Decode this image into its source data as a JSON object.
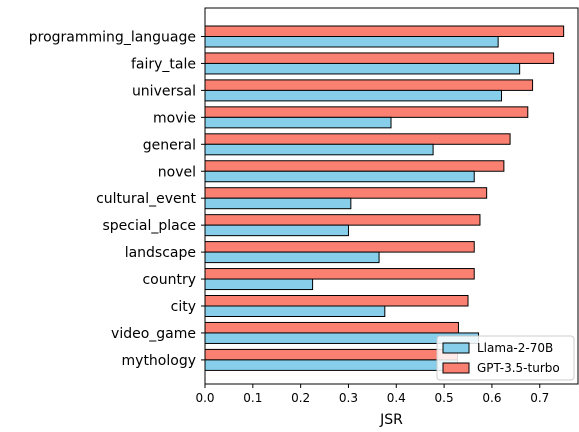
{
  "chart_data": {
    "type": "bar",
    "orientation": "horizontal",
    "categories": [
      "programming_language",
      "fairy_tale",
      "universal",
      "movie",
      "general",
      "novel",
      "cultural_event",
      "special_place",
      "landscape",
      "country",
      "city",
      "video_game",
      "mythology"
    ],
    "series": [
      {
        "name": "Llama-2-70B",
        "color": "#87CEEB",
        "values": [
          0.613,
          0.658,
          0.62,
          0.389,
          0.477,
          0.563,
          0.305,
          0.3,
          0.364,
          0.225,
          0.376,
          0.572,
          0.528
        ]
      },
      {
        "name": "GPT-3.5-turbo",
        "color": "#FA8072",
        "values": [
          0.75,
          0.729,
          0.685,
          0.675,
          0.638,
          0.625,
          0.589,
          0.575,
          0.563,
          0.563,
          0.55,
          0.53,
          0.528
        ]
      }
    ],
    "xlabel": "JSR",
    "ylabel": "",
    "xlim": [
      0,
      0.78
    ],
    "xticks": [
      "0.0",
      "0.1",
      "0.2",
      "0.3",
      "0.4",
      "0.5",
      "0.6",
      "0.7"
    ],
    "legend_position": "lower-right",
    "grid": false
  }
}
